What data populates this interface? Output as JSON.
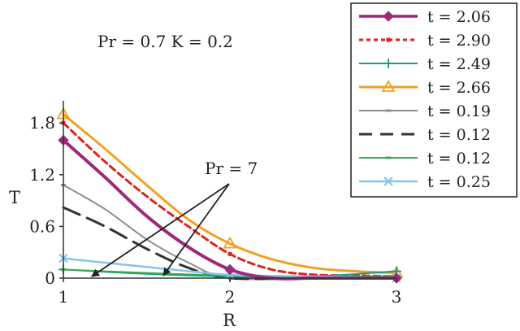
{
  "chart_data": {
    "type": "line",
    "title": "",
    "xlabel": "R",
    "ylabel": "T",
    "xlim": [
      1,
      3
    ],
    "ylim": [
      0,
      2.0
    ],
    "x_ticks": [
      1,
      2,
      3
    ],
    "x_tick_labels": [
      "1",
      "2",
      "3"
    ],
    "y_ticks": [
      0,
      0.6,
      1.2,
      1.8
    ],
    "y_tick_labels": [
      "0",
      "0.6",
      "1.2",
      "1.8"
    ],
    "grid": false,
    "legend_position": "top-right",
    "annotations": {
      "params": "Pr = 0.7  K = 0.2",
      "pr_arrow": "Pr = 7"
    },
    "series": [
      {
        "name": "t = 2.06",
        "color": "#a0287a",
        "dash": "solid",
        "marker": "diamond",
        "width": 4,
        "points": [
          [
            1,
            1.6
          ],
          [
            1.25,
            1.17
          ],
          [
            1.5,
            0.72
          ],
          [
            1.75,
            0.36
          ],
          [
            2,
            0.1
          ],
          [
            2.25,
            0.0
          ],
          [
            2.5,
            0.0
          ],
          [
            2.75,
            0.0
          ],
          [
            3,
            0.0
          ]
        ]
      },
      {
        "name": "t = 2.90",
        "color": "#dd2222",
        "dash": "dashed",
        "marker": "square",
        "width": 3,
        "points": [
          [
            1,
            1.8
          ],
          [
            1.25,
            1.35
          ],
          [
            1.5,
            0.95
          ],
          [
            1.75,
            0.6
          ],
          [
            2,
            0.28
          ],
          [
            2.25,
            0.1
          ],
          [
            2.5,
            0.04
          ],
          [
            2.75,
            0.03
          ],
          [
            3,
            0.02
          ]
        ]
      },
      {
        "name": "t = 2.49",
        "color": "#1a9a85",
        "dash": "solid",
        "marker": "plus",
        "width": 2,
        "points": [
          [
            1,
            0.1
          ],
          [
            1.5,
            0.05
          ],
          [
            2,
            0.02
          ],
          [
            2.5,
            0.02
          ],
          [
            3,
            0.08
          ]
        ]
      },
      {
        "name": "t = 2.66",
        "color": "#f2a024",
        "dash": "solid",
        "marker": "triangle",
        "width": 3,
        "points": [
          [
            1,
            1.9
          ],
          [
            1.25,
            1.5
          ],
          [
            1.5,
            1.08
          ],
          [
            1.75,
            0.68
          ],
          [
            2,
            0.4
          ],
          [
            2.25,
            0.22
          ],
          [
            2.5,
            0.12
          ],
          [
            2.75,
            0.08
          ],
          [
            3,
            0.06
          ]
        ]
      },
      {
        "name": "t = 0.19",
        "color": "#8c8c96",
        "dash": "solid",
        "marker": "dash",
        "width": 2,
        "points": [
          [
            1,
            1.08
          ],
          [
            1.25,
            0.8
          ],
          [
            1.5,
            0.45
          ],
          [
            1.75,
            0.18
          ],
          [
            2,
            0.0
          ],
          [
            2.5,
            0.0
          ],
          [
            3,
            0.0
          ]
        ]
      },
      {
        "name": "t = 0.12",
        "color": "#333333",
        "dash": "longdash",
        "marker": "none",
        "width": 3,
        "points": [
          [
            1,
            0.82
          ],
          [
            1.25,
            0.6
          ],
          [
            1.5,
            0.34
          ],
          [
            1.75,
            0.12
          ],
          [
            2,
            0.0
          ],
          [
            2.5,
            0.0
          ],
          [
            3,
            0.0
          ]
        ]
      },
      {
        "name": "t = 0.12",
        "color": "#3aaa4a",
        "dash": "solid",
        "marker": "dash",
        "width": 2,
        "points": [
          [
            1,
            0.1
          ],
          [
            1.5,
            0.06
          ],
          [
            2,
            0.03
          ],
          [
            2.5,
            0.02
          ],
          [
            3,
            0.02
          ]
        ]
      },
      {
        "name": "t = 0.25",
        "color": "#88c4e8",
        "dash": "solid",
        "marker": "x",
        "width": 2.5,
        "points": [
          [
            1,
            0.23
          ],
          [
            1.5,
            0.13
          ],
          [
            2,
            0.04
          ],
          [
            2.5,
            0.02
          ],
          [
            3,
            0.0
          ]
        ]
      }
    ]
  }
}
